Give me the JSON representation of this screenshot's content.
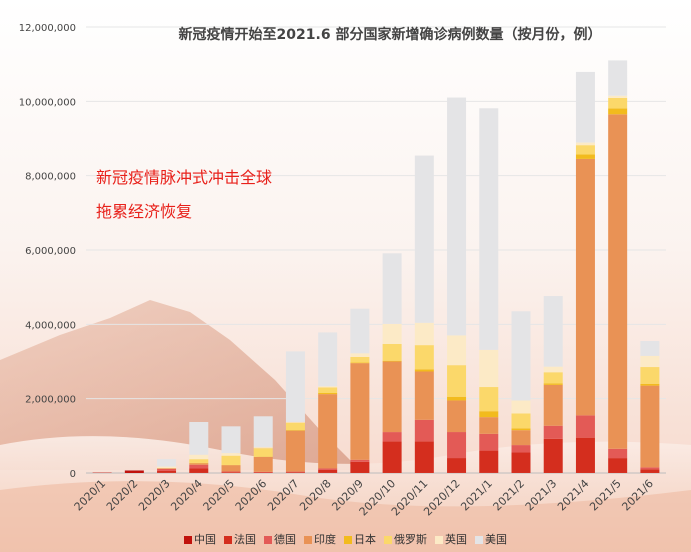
{
  "chart_data": {
    "type": "bar",
    "stacked": true,
    "title": "新冠疫情开始至2021.6 部分国家新增确诊病例数量（按月份，例）",
    "annotations": [
      "新冠疫情脉冲式冲击全球",
      "拖累经济恢复"
    ],
    "categories": [
      "2020/1",
      "2020/2",
      "2020/3",
      "2020/4",
      "2020/5",
      "2020/6",
      "2020/7",
      "2020/8",
      "2020/9",
      "2020/10",
      "2020/11",
      "2020/12",
      "2021/1",
      "2021/2",
      "2021/3",
      "2021/4",
      "2021/5",
      "2021/6"
    ],
    "ylim": [
      0,
      12000000
    ],
    "yticks": [
      0,
      2000000,
      4000000,
      6000000,
      8000000,
      10000000,
      12000000
    ],
    "ytick_labels": [
      "0",
      "2,000,000",
      "4,000,000",
      "6,000,000",
      "8,000,000",
      "10,000,000",
      "12,000,000"
    ],
    "legend_position": "bottom",
    "series": [
      {
        "name": "中国",
        "color": "#c0120c",
        "values": [
          10000,
          70000,
          5000,
          2000,
          1000,
          1000,
          3000,
          2000,
          1000,
          1000,
          1000,
          2000,
          3000,
          1000,
          1000,
          1000,
          1000,
          1000
        ]
      },
      {
        "name": "法国",
        "color": "#d42e1e",
        "values": [
          0,
          0,
          50000,
          120000,
          20000,
          15000,
          20000,
          80000,
          300000,
          850000,
          850000,
          400000,
          600000,
          550000,
          920000,
          950000,
          400000,
          100000
        ]
      },
      {
        "name": "德国",
        "color": "#e35a56",
        "values": [
          0,
          0,
          60000,
          100000,
          20000,
          15000,
          15000,
          40000,
          55000,
          250000,
          580000,
          700000,
          450000,
          200000,
          350000,
          600000,
          250000,
          50000
        ]
      },
      {
        "name": "印度",
        "color": "#e99255",
        "values": [
          0,
          0,
          10000,
          40000,
          170000,
          400000,
          1100000,
          2000000,
          2600000,
          1900000,
          1300000,
          850000,
          450000,
          400000,
          1100000,
          6900000,
          9000000,
          2200000
        ]
      },
      {
        "name": "日本",
        "color": "#f2bb1d",
        "values": [
          0,
          0,
          5000,
          10000,
          5000,
          5000,
          15000,
          30000,
          15000,
          20000,
          60000,
          100000,
          160000,
          50000,
          40000,
          120000,
          160000,
          50000
        ]
      },
      {
        "name": "俄罗斯",
        "color": "#fbd86a",
        "values": [
          0,
          0,
          3000,
          100000,
          250000,
          230000,
          200000,
          150000,
          150000,
          450000,
          650000,
          850000,
          650000,
          400000,
          300000,
          250000,
          280000,
          450000
        ]
      },
      {
        "name": "英国",
        "color": "#fceac6",
        "values": [
          0,
          0,
          40000,
          120000,
          70000,
          30000,
          20000,
          30000,
          100000,
          540000,
          600000,
          800000,
          1000000,
          350000,
          150000,
          70000,
          60000,
          300000
        ]
      },
      {
        "name": "美国",
        "color": "#e4e4e6",
        "values": [
          0,
          10000,
          200000,
          880000,
          720000,
          830000,
          1900000,
          1450000,
          1200000,
          1900000,
          4500000,
          6400000,
          6500000,
          2400000,
          1900000,
          1900000,
          950000,
          400000
        ]
      }
    ]
  }
}
